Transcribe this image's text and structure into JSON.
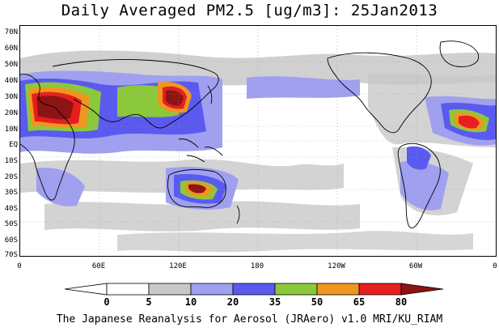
{
  "title": "Daily Averaged PM2.5 [ug/m3]: 25Jan2013",
  "footer": "The Japanese Reanalysis for Aerosol (JRAero) v1.0 MRI/KU_RIAM",
  "y_axis_labels": [
    "70N",
    "60N",
    "50N",
    "40N",
    "30N",
    "20N",
    "10N",
    "EQ",
    "10S",
    "20S",
    "30S",
    "40S",
    "50S",
    "60S",
    "70S"
  ],
  "x_axis_labels": [
    "0",
    "60E",
    "120E",
    "180",
    "120W",
    "60W",
    "0"
  ],
  "colorbar": {
    "labels": [
      "0",
      "5",
      "10",
      "20",
      "35",
      "50",
      "65",
      "80"
    ],
    "colors": [
      "#ffffff",
      "#c8c8c8",
      "#a0a0f0",
      "#5a5af0",
      "#8cc83c",
      "#f0961e",
      "#e61e1e",
      "#8c1414"
    ]
  }
}
